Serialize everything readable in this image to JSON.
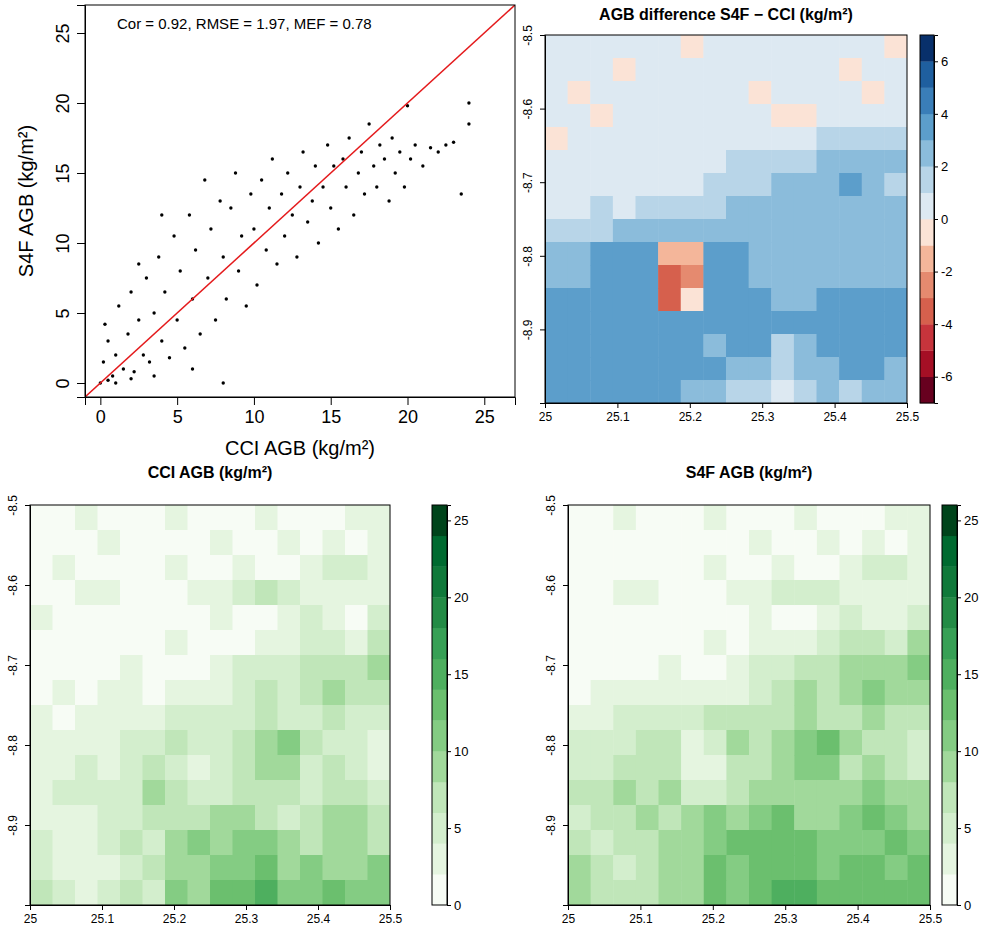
{
  "chart_data": [
    {
      "type": "scatter",
      "annotation": "Cor = 0.92, RMSE = 1.97, MEF = 0.78",
      "x_label": "CCI AGB (kg/m²)",
      "y_label": "S4F AGB (kg/m²)",
      "xlim": [
        -1,
        27
      ],
      "ylim": [
        -1,
        27
      ],
      "xticks": [
        0,
        5,
        10,
        15,
        20,
        25
      ],
      "yticks": [
        0,
        5,
        10,
        15,
        20,
        25
      ],
      "color": "#000000",
      "reference_line": {
        "x": [
          -1,
          27
        ],
        "y": [
          -1,
          27
        ],
        "color": "#e41a1c"
      },
      "x": [
        0,
        0.2,
        0.5,
        0.3,
        0.8,
        1,
        1.2,
        1.5,
        1.8,
        2,
        2.2,
        2.5,
        2.8,
        3,
        3.2,
        3.5,
        3.8,
        4,
        4.2,
        4.5,
        4.8,
        5,
        5.2,
        5.5,
        5.8,
        6,
        6.2,
        6.5,
        6.8,
        7,
        7.2,
        7.5,
        7.8,
        8,
        8.2,
        8.5,
        8.8,
        9,
        9.2,
        9.5,
        9.8,
        10,
        10.2,
        10.5,
        10.8,
        11,
        11.2,
        11.5,
        11.8,
        12,
        12.2,
        12.5,
        12.8,
        13,
        13.2,
        13.5,
        13.8,
        14,
        14.2,
        14.5,
        14.8,
        15,
        15.2,
        15.5,
        15.8,
        16,
        16.2,
        16.5,
        16.8,
        17,
        17.2,
        17.5,
        17.8,
        18,
        18.2,
        18.5,
        18.8,
        19,
        19.2,
        19.5,
        19.8,
        20,
        20.2,
        20.5,
        21,
        21.5,
        22,
        22.5,
        23,
        23.5,
        24,
        24,
        0.5,
        1,
        2,
        3.5,
        6,
        8,
        4,
        2.5
      ],
      "y": [
        0,
        1.5,
        3,
        4.2,
        0.5,
        2,
        5.5,
        1,
        3.5,
        6.5,
        0.8,
        4.5,
        2,
        7.5,
        1.5,
        5,
        9,
        3,
        6.5,
        1.8,
        10.5,
        4.5,
        8,
        2.5,
        12,
        6,
        9.5,
        3.5,
        14.5,
        7.5,
        11,
        4.5,
        13,
        9,
        6,
        12.5,
        15,
        8,
        10.5,
        5.5,
        13.5,
        11,
        7,
        14.5,
        9.5,
        12.5,
        16,
        8.5,
        13.5,
        10.5,
        15,
        12,
        9,
        14,
        16.5,
        11.5,
        13,
        15.5,
        10,
        14,
        17,
        12.5,
        15.5,
        11,
        16,
        14,
        17.5,
        12,
        15,
        16.5,
        13.5,
        18.5,
        15.5,
        14,
        17,
        16,
        13,
        17.5,
        15,
        16.5,
        14,
        19.8,
        16,
        17,
        15.5,
        16.8,
        16.5,
        17,
        17.2,
        13.5,
        18.5,
        20,
        0.2,
        0,
        0.3,
        0.5,
        1,
        0,
        12,
        8.5
      ]
    },
    {
      "type": "heatmap",
      "title": "AGB difference S4F − CCI (kg/m²)",
      "xlim": [
        25,
        25.5
      ],
      "ylim": [
        -9,
        -8.5
      ],
      "xticks": [
        25,
        25.1,
        25.2,
        25.3,
        25.4,
        25.5
      ],
      "yticks": [
        -8.5,
        -8.6,
        -8.7,
        -8.8,
        -8.9
      ],
      "cells": [
        [
          0,
          0,
          0,
          0,
          0,
          0,
          -1,
          0,
          0,
          0,
          0,
          0,
          0,
          0,
          0,
          -1
        ],
        [
          0,
          0,
          0,
          -1,
          0,
          0,
          0,
          0,
          0,
          0,
          0,
          0,
          0,
          -1,
          0,
          0
        ],
        [
          0,
          -1,
          0,
          0,
          0,
          0,
          0,
          0,
          0,
          -1,
          0,
          0,
          0,
          0,
          -1,
          0
        ],
        [
          0,
          0,
          -1,
          0,
          0,
          0,
          0,
          0,
          0,
          0,
          -1,
          -1,
          0,
          0,
          0,
          0
        ],
        [
          -1,
          0,
          0,
          0,
          0,
          0,
          0,
          0,
          0,
          0,
          0,
          0,
          1,
          1,
          1,
          1
        ],
        [
          0,
          0,
          0,
          0,
          0,
          0,
          0,
          0,
          1,
          1,
          1,
          1,
          2,
          2,
          2,
          2
        ],
        [
          0,
          0,
          0,
          0,
          0,
          0,
          0,
          1,
          1,
          1,
          2,
          2,
          2,
          3,
          2,
          1
        ],
        [
          0,
          0,
          1,
          0,
          1,
          1,
          1,
          1,
          2,
          2,
          2,
          2,
          2,
          2,
          2,
          2
        ],
        [
          1,
          1,
          1,
          2,
          2,
          2,
          2,
          2,
          2,
          2,
          2,
          2,
          2,
          2,
          2,
          2
        ],
        [
          2,
          2,
          3,
          3,
          3,
          -2,
          -2,
          3,
          3,
          2,
          2,
          2,
          2,
          2,
          2,
          2
        ],
        [
          2,
          2,
          3,
          3,
          3,
          -4,
          -3,
          3,
          3,
          2,
          2,
          2,
          2,
          2,
          2,
          2
        ],
        [
          3,
          3,
          3,
          3,
          3,
          -4,
          -1,
          3,
          3,
          3,
          2,
          2,
          3,
          3,
          3,
          3
        ],
        [
          3,
          3,
          3,
          3,
          3,
          3,
          3,
          3,
          3,
          3,
          3,
          3,
          3,
          3,
          3,
          3
        ],
        [
          3,
          3,
          3,
          3,
          3,
          3,
          3,
          2,
          3,
          3,
          1,
          2,
          3,
          3,
          3,
          3
        ],
        [
          3,
          3,
          3,
          3,
          3,
          3,
          3,
          3,
          2,
          2,
          1,
          2,
          2,
          3,
          3,
          2
        ],
        [
          3,
          3,
          3,
          3,
          3,
          3,
          2,
          2,
          1,
          1,
          0,
          1,
          2,
          1,
          2,
          2
        ]
      ],
      "colorbar": {
        "lim": [
          -7,
          7
        ],
        "ticks": [
          -6,
          -4,
          -2,
          0,
          2,
          4,
          6
        ],
        "breaks": [
          -7,
          -6,
          -5,
          -4,
          -3,
          -2,
          -1,
          0,
          1,
          2,
          3,
          4,
          5,
          6,
          7
        ],
        "colors": [
          "#67001f",
          "#a50f25",
          "#c6343c",
          "#d6604d",
          "#e58a6f",
          "#f4b69a",
          "#fbe3d6",
          "#dde9f2",
          "#b8d5e8",
          "#8bbcdb",
          "#5c9ecb",
          "#3a7eb8",
          "#1f5f9f",
          "#08306b"
        ]
      }
    },
    {
      "type": "heatmap",
      "title": "CCI AGB (kg/m²)",
      "xlim": [
        25,
        25.5
      ],
      "ylim": [
        -9,
        -8.5
      ],
      "xticks": [
        25,
        25.1,
        25.2,
        25.3,
        25.4,
        25.5
      ],
      "yticks": [
        -8.5,
        -8.6,
        -8.7,
        -8.8,
        -8.9
      ],
      "cells": [
        [
          1,
          1,
          2,
          1,
          1,
          1,
          3,
          1,
          1,
          1,
          2,
          1,
          1,
          1,
          2,
          3
        ],
        [
          1,
          1,
          1,
          2,
          1,
          1,
          1,
          1,
          2,
          1,
          1,
          2,
          1,
          3,
          1,
          2
        ],
        [
          1,
          2,
          1,
          1,
          1,
          1,
          2,
          1,
          1,
          3,
          1,
          1,
          2,
          4,
          5,
          3
        ],
        [
          1,
          1,
          3,
          2,
          1,
          1,
          1,
          2,
          3,
          4,
          6,
          5,
          2,
          2,
          2,
          3
        ],
        [
          2,
          1,
          1,
          1,
          1,
          1,
          1,
          1,
          2,
          1,
          1,
          2,
          4,
          2,
          1,
          4
        ],
        [
          1,
          1,
          1,
          1,
          1,
          1,
          2,
          1,
          1,
          1,
          2,
          3,
          5,
          4,
          3,
          6
        ],
        [
          1,
          1,
          1,
          1,
          2,
          1,
          1,
          1,
          3,
          4,
          4,
          5,
          7,
          6,
          6,
          9
        ],
        [
          1,
          2,
          1,
          3,
          2,
          1,
          2,
          2,
          3,
          5,
          6,
          4,
          6,
          8,
          7,
          6
        ],
        [
          2,
          1,
          3,
          2,
          3,
          3,
          4,
          4,
          5,
          4,
          7,
          5,
          4,
          6,
          5,
          4
        ],
        [
          2,
          3,
          2,
          3,
          4,
          5,
          6,
          5,
          4,
          6,
          9,
          10,
          6,
          5,
          4,
          3
        ],
        [
          3,
          2,
          4,
          3,
          4,
          6,
          5,
          3,
          4,
          7,
          8,
          9,
          5,
          6,
          4,
          3
        ],
        [
          3,
          4,
          5,
          4,
          5,
          8,
          6,
          4,
          5,
          6,
          6,
          7,
          5,
          7,
          6,
          5
        ],
        [
          2,
          3,
          3,
          5,
          4,
          6,
          7,
          6,
          8,
          9,
          6,
          5,
          7,
          9,
          8,
          6
        ],
        [
          4,
          2,
          3,
          4,
          6,
          5,
          8,
          10,
          9,
          10,
          11,
          8,
          7,
          8,
          9,
          7
        ],
        [
          5,
          3,
          2,
          3,
          5,
          6,
          9,
          8,
          11,
          10,
          12,
          9,
          10,
          9,
          8,
          10
        ],
        [
          6,
          4,
          3,
          4,
          6,
          5,
          10,
          9,
          12,
          13,
          14,
          11,
          10,
          12,
          11,
          10
        ]
      ],
      "colorbar": {
        "lim": [
          0,
          26
        ],
        "ticks": [
          0,
          5,
          10,
          15,
          20,
          25
        ],
        "breaks": [
          0,
          2,
          4,
          6,
          8,
          10,
          12,
          14,
          16,
          18,
          20,
          22,
          24,
          26
        ],
        "colors": [
          "#f7fcf5",
          "#e5f5e0",
          "#d3eecd",
          "#c0e6b9",
          "#a1d99b",
          "#84cc83",
          "#6bbf6e",
          "#4eaf5f",
          "#37a055",
          "#238b45",
          "#10793a",
          "#006a30",
          "#00441b"
        ]
      }
    },
    {
      "type": "heatmap",
      "title": "S4F AGB (kg/m²)",
      "xlim": [
        25,
        25.5
      ],
      "ylim": [
        -9,
        -8.5
      ],
      "xticks": [
        25,
        25.1,
        25.2,
        25.3,
        25.4,
        25.5
      ],
      "yticks": [
        -8.5,
        -8.6,
        -8.7,
        -8.8,
        -8.9
      ],
      "cells": [
        [
          1,
          1,
          2,
          1,
          1,
          1,
          2,
          1,
          1,
          1,
          2,
          1,
          1,
          1,
          2,
          2
        ],
        [
          1,
          1,
          1,
          1,
          1,
          1,
          1,
          1,
          2,
          1,
          1,
          2,
          1,
          2,
          1,
          2
        ],
        [
          1,
          1,
          1,
          1,
          1,
          1,
          2,
          1,
          1,
          2,
          1,
          1,
          2,
          4,
          4,
          3
        ],
        [
          1,
          1,
          2,
          2,
          1,
          1,
          1,
          2,
          3,
          4,
          5,
          4,
          2,
          2,
          2,
          3
        ],
        [
          1,
          1,
          1,
          1,
          1,
          1,
          1,
          1,
          2,
          1,
          1,
          2,
          5,
          3,
          2,
          5
        ],
        [
          1,
          1,
          1,
          1,
          1,
          1,
          2,
          1,
          2,
          2,
          3,
          4,
          7,
          6,
          5,
          8
        ],
        [
          1,
          1,
          1,
          1,
          2,
          1,
          1,
          2,
          4,
          5,
          6,
          7,
          9,
          9,
          8,
          10
        ],
        [
          1,
          2,
          2,
          3,
          3,
          2,
          3,
          3,
          5,
          7,
          8,
          6,
          8,
          10,
          9,
          8
        ],
        [
          3,
          2,
          4,
          4,
          5,
          5,
          6,
          6,
          7,
          6,
          9,
          7,
          6,
          8,
          7,
          6
        ],
        [
          4,
          5,
          5,
          6,
          7,
          3,
          4,
          8,
          7,
          8,
          11,
          12,
          8,
          7,
          6,
          5
        ],
        [
          5,
          4,
          7,
          6,
          7,
          2,
          2,
          6,
          7,
          9,
          10,
          11,
          7,
          8,
          6,
          5
        ],
        [
          6,
          7,
          8,
          7,
          8,
          4,
          5,
          7,
          8,
          9,
          8,
          9,
          8,
          10,
          9,
          8
        ],
        [
          5,
          6,
          6,
          8,
          7,
          9,
          10,
          9,
          11,
          12,
          9,
          8,
          10,
          12,
          11,
          9
        ],
        [
          7,
          5,
          6,
          7,
          9,
          8,
          11,
          12,
          12,
          13,
          12,
          10,
          10,
          11,
          12,
          10
        ],
        [
          8,
          6,
          5,
          6,
          8,
          9,
          12,
          11,
          13,
          12,
          13,
          11,
          12,
          12,
          11,
          12
        ],
        [
          9,
          7,
          6,
          7,
          9,
          8,
          12,
          11,
          13,
          14,
          14,
          12,
          12,
          13,
          13,
          12
        ]
      ],
      "colorbar": {
        "lim": [
          0,
          26
        ],
        "ticks": [
          0,
          5,
          10,
          15,
          20,
          25
        ],
        "breaks": [
          0,
          2,
          4,
          6,
          8,
          10,
          12,
          14,
          16,
          18,
          20,
          22,
          24,
          26
        ],
        "colors": [
          "#f7fcf5",
          "#e5f5e0",
          "#d3eecd",
          "#c0e6b9",
          "#a1d99b",
          "#84cc83",
          "#6bbf6e",
          "#4eaf5f",
          "#37a055",
          "#238b45",
          "#10793a",
          "#006a30",
          "#00441b"
        ]
      }
    }
  ]
}
